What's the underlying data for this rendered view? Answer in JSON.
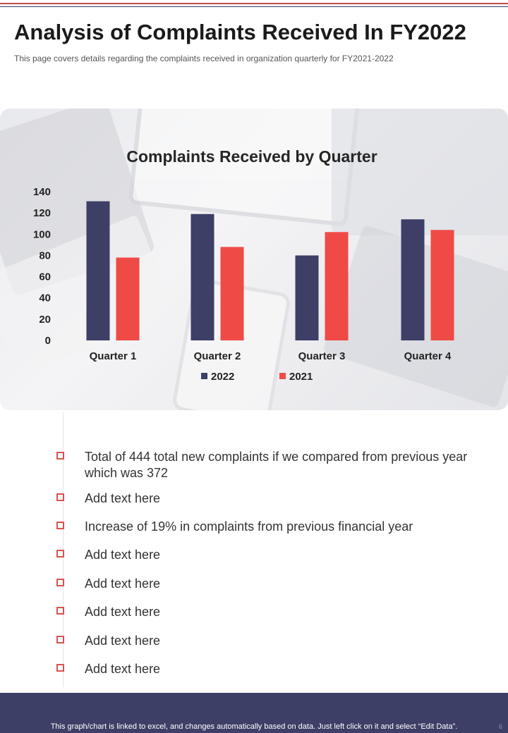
{
  "header": {
    "title": "Analysis of Complaints Received In FY2022",
    "subtitle": "This page covers details regarding the complaints received  in organization quarterly for FY2021-2022"
  },
  "colors": {
    "series_2022": "#3d3f66",
    "series_2021": "#f04a46",
    "accent": "#c0504d",
    "footer_bg": "#3d3f66"
  },
  "chart_data": {
    "type": "bar",
    "title": "Complaints Received by Quarter",
    "categories": [
      "Quarter 1",
      "Quarter 2",
      "Quarter 3",
      "Quarter 4"
    ],
    "series": [
      {
        "name": "2022",
        "values": [
          131,
          119,
          80,
          114
        ]
      },
      {
        "name": "2021",
        "values": [
          78,
          88,
          102,
          104
        ]
      }
    ],
    "ylim": [
      0,
      140
    ],
    "yticks": [
      0,
      20,
      40,
      60,
      80,
      100,
      120,
      140
    ],
    "xlabel": "",
    "ylabel": "",
    "grid": false,
    "legend": "bottom"
  },
  "bullets": [
    {
      "text": "Total of 444 total new complaints if we compared from previous year which was 372"
    },
    {
      "text": "Add text here"
    },
    {
      "text": "Increase of 19% in complaints from previous financial year"
    },
    {
      "text": "Add text here"
    },
    {
      "text": "Add text here"
    },
    {
      "text": "Add text here"
    },
    {
      "text": "Add text here"
    },
    {
      "text": "Add text here"
    }
  ],
  "footer": {
    "text": "This graph/chart is linked to excel, and changes automatically based on data. Just left click on it and select “Edit Data”.",
    "page_number": "6"
  }
}
